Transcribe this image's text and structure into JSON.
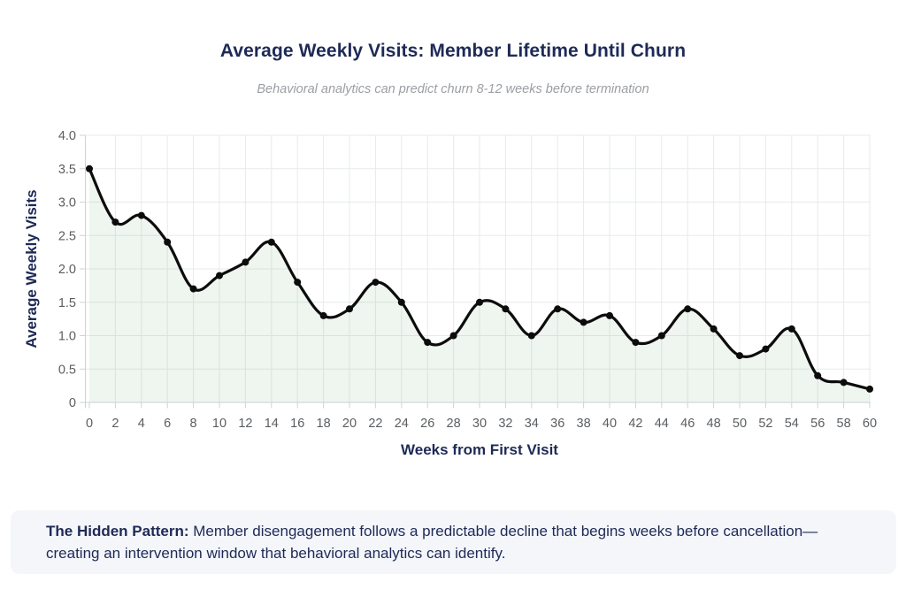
{
  "header": {
    "title": "Average Weekly Visits: Member Lifetime Until Churn",
    "subtitle": "Behavioral analytics can predict churn 8-12 weeks before termination"
  },
  "chart_data": {
    "type": "line",
    "title": "Average Weekly Visits: Member Lifetime Until Churn",
    "subtitle": "Behavioral analytics can predict churn 8-12 weeks before termination",
    "x": [
      0,
      2,
      4,
      6,
      8,
      10,
      12,
      14,
      16,
      18,
      20,
      22,
      24,
      26,
      28,
      30,
      32,
      34,
      36,
      38,
      40,
      42,
      44,
      46,
      48,
      50,
      52,
      54,
      56,
      58,
      60
    ],
    "values": [
      3.5,
      2.7,
      2.8,
      2.4,
      1.7,
      1.9,
      2.1,
      2.4,
      1.8,
      1.3,
      1.4,
      1.8,
      1.5,
      0.9,
      1.0,
      1.5,
      1.4,
      1.0,
      1.4,
      1.2,
      1.3,
      0.9,
      1.0,
      1.4,
      1.1,
      0.7,
      0.8,
      1.1,
      0.4,
      0.3,
      0.2
    ],
    "xlabel": "Weeks from First Visit",
    "ylabel": "Average Weekly Visits",
    "xlim": [
      0,
      60
    ],
    "ylim": [
      0,
      4.0
    ],
    "x_tick_interval": 2,
    "y_ticks": [
      0,
      0.5,
      1.0,
      1.5,
      2.0,
      2.5,
      3.0,
      3.5,
      4.0
    ],
    "y_tick_labels": [
      "0",
      "0.5",
      "1.0",
      "1.5",
      "2.0",
      "2.5",
      "3.0",
      "3.5",
      "4.0"
    ],
    "grid": true,
    "legend": "none",
    "smooth": true,
    "marker": "circle",
    "area_fill": true
  },
  "callout": {
    "lead": "The Hidden Pattern:",
    "body": " Member disengagement follows a predictable decline that begins weeks before cancellation—creating an intervention window that behavioral analytics can identify."
  },
  "colors": {
    "navy": "#1e2a56",
    "subtitle_gray": "#9b9ea3",
    "tick_label_gray": "#5a5e61",
    "grid_line": "#e6ebe9",
    "axis_line": "#ccd3d7",
    "series_line": "#0c0c0c",
    "area_fill": "rgba(120,175,120,0.12)",
    "callout_bg": "#f4f6fa"
  }
}
